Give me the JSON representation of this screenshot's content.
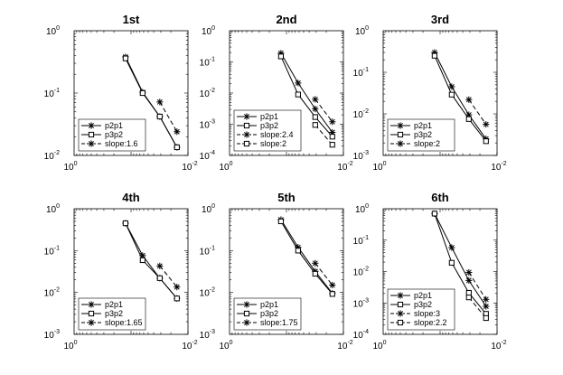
{
  "chart_data": [
    {
      "type": "line",
      "title": "1st",
      "xscale": "log",
      "yscale": "log",
      "xlim": [
        1,
        0.01
      ],
      "ylim": [
        0.01,
        1
      ],
      "xticks": [
        "10",
        "0",
        "10",
        "-2"
      ],
      "yticks": [
        [
          "10",
          "0"
        ],
        [
          "10",
          "-1"
        ],
        [
          "10",
          "-2"
        ]
      ],
      "legend_position": "bottom-left",
      "series": [
        {
          "name": "p2p1",
          "marker": "asterisk",
          "style": "solid",
          "x": [
            0.125,
            0.0625,
            0.03125,
            0.015625
          ],
          "y": [
            0.38,
            0.103,
            0.042,
            0.0135
          ]
        },
        {
          "name": "p3p2",
          "marker": "square",
          "style": "solid",
          "x": [
            0.125,
            0.0625,
            0.03125,
            0.015625
          ],
          "y": [
            0.36,
            0.1,
            0.042,
            0.0135
          ]
        },
        {
          "name": "slope:1.6",
          "marker": "asterisk",
          "style": "dashed",
          "x": [
            0.03125,
            0.015625
          ],
          "y": [
            0.072,
            0.024
          ]
        }
      ]
    },
    {
      "type": "line",
      "title": "2nd",
      "xscale": "log",
      "yscale": "log",
      "xlim": [
        1,
        0.01
      ],
      "ylim": [
        0.0001,
        1
      ],
      "xticks": [
        "10",
        "0",
        "10",
        "-2"
      ],
      "yticks": [
        [
          "10",
          "0"
        ],
        [
          "10",
          "-1"
        ],
        [
          "10",
          "-2"
        ],
        [
          "10",
          "-3"
        ],
        [
          "10",
          "-4"
        ]
      ],
      "legend_position": "bottom-left",
      "series": [
        {
          "name": "p2p1",
          "marker": "asterisk",
          "style": "solid",
          "x": [
            0.125,
            0.0625,
            0.03125,
            0.015625
          ],
          "y": [
            0.19,
            0.021,
            0.0031,
            0.00055
          ]
        },
        {
          "name": "p3p2",
          "marker": "square",
          "style": "solid",
          "x": [
            0.125,
            0.0625,
            0.03125,
            0.015625
          ],
          "y": [
            0.15,
            0.009,
            0.0017,
            0.0004
          ]
        },
        {
          "name": "slope:2.4",
          "marker": "asterisk",
          "style": "dashed",
          "x": [
            0.03125,
            0.015625
          ],
          "y": [
            0.0063,
            0.0012
          ]
        },
        {
          "name": "slope:2",
          "marker": "square",
          "style": "dashed",
          "x": [
            0.03125,
            0.015625
          ],
          "y": [
            0.00095,
            0.00022
          ]
        }
      ]
    },
    {
      "type": "line",
      "title": "3rd",
      "xscale": "log",
      "yscale": "log",
      "xlim": [
        1,
        0.01
      ],
      "ylim": [
        0.001,
        1
      ],
      "xticks": [
        "10",
        "0",
        "10",
        "-2"
      ],
      "yticks": [
        [
          "10",
          "0"
        ],
        [
          "10",
          "-1"
        ],
        [
          "10",
          "-2"
        ],
        [
          "10",
          "-3"
        ]
      ],
      "legend_position": "bottom-left",
      "series": [
        {
          "name": "p2p1",
          "marker": "asterisk",
          "style": "solid",
          "x": [
            0.125,
            0.0625,
            0.03125,
            0.015625
          ],
          "y": [
            0.3,
            0.045,
            0.0095,
            0.0025
          ]
        },
        {
          "name": "p3p2",
          "marker": "square",
          "style": "solid",
          "x": [
            0.125,
            0.0625,
            0.03125,
            0.015625
          ],
          "y": [
            0.25,
            0.029,
            0.0075,
            0.0022
          ]
        },
        {
          "name": "slope:2",
          "marker": "asterisk",
          "style": "dashed",
          "x": [
            0.03125,
            0.015625
          ],
          "y": [
            0.022,
            0.0056
          ]
        }
      ]
    },
    {
      "type": "line",
      "title": "4th",
      "xscale": "log",
      "yscale": "log",
      "xlim": [
        1,
        0.01
      ],
      "ylim": [
        0.001,
        1
      ],
      "xticks": [
        "10",
        "0",
        "10",
        "-2"
      ],
      "yticks": [
        [
          "10",
          "0"
        ],
        [
          "10",
          "-1"
        ],
        [
          "10",
          "-2"
        ],
        [
          "10",
          "-3"
        ]
      ],
      "legend_position": "bottom-left",
      "series": [
        {
          "name": "p2p1",
          "marker": "asterisk",
          "style": "solid",
          "x": [
            0.125,
            0.0625,
            0.03125,
            0.015625
          ],
          "y": [
            0.45,
            0.076,
            0.022,
            0.0072
          ]
        },
        {
          "name": "p3p2",
          "marker": "square",
          "style": "solid",
          "x": [
            0.125,
            0.0625,
            0.03125,
            0.015625
          ],
          "y": [
            0.45,
            0.059,
            0.022,
            0.0072
          ]
        },
        {
          "name": "slope:1.65",
          "marker": "asterisk",
          "style": "dashed",
          "x": [
            0.03125,
            0.015625
          ],
          "y": [
            0.043,
            0.0135
          ]
        }
      ]
    },
    {
      "type": "line",
      "title": "5th",
      "xscale": "log",
      "yscale": "log",
      "xlim": [
        1,
        0.01
      ],
      "ylim": [
        0.001,
        1
      ],
      "xticks": [
        "10",
        "0",
        "10",
        "-2"
      ],
      "yticks": [
        [
          "10",
          "0"
        ],
        [
          "10",
          "-1"
        ],
        [
          "10",
          "-2"
        ],
        [
          "10",
          "-3"
        ]
      ],
      "legend_position": "bottom-left",
      "series": [
        {
          "name": "p2p1",
          "marker": "asterisk",
          "style": "solid",
          "x": [
            0.125,
            0.0625,
            0.03125,
            0.015625
          ],
          "y": [
            0.55,
            0.12,
            0.032,
            0.0095
          ]
        },
        {
          "name": "p3p2",
          "marker": "square",
          "style": "solid",
          "x": [
            0.125,
            0.0625,
            0.03125,
            0.015625
          ],
          "y": [
            0.5,
            0.1,
            0.028,
            0.0092
          ]
        },
        {
          "name": "slope:1.75",
          "marker": "asterisk",
          "style": "dashed",
          "x": [
            0.03125,
            0.015625
          ],
          "y": [
            0.05,
            0.015
          ]
        }
      ]
    },
    {
      "type": "line",
      "title": "6th",
      "xscale": "log",
      "yscale": "log",
      "xlim": [
        1,
        0.01
      ],
      "ylim": [
        0.0001,
        1
      ],
      "xticks": [
        "10",
        "0",
        "10",
        "-2"
      ],
      "yticks": [
        [
          "10",
          "0"
        ],
        [
          "10",
          "-1"
        ],
        [
          "10",
          "-2"
        ],
        [
          "10",
          "-3"
        ],
        [
          "10",
          "-4"
        ]
      ],
      "legend_position": "bottom-left",
      "series": [
        {
          "name": "p2p1",
          "marker": "asterisk",
          "style": "solid",
          "x": [
            0.125,
            0.0625,
            0.03125,
            0.015625
          ],
          "y": [
            0.7,
            0.058,
            0.0052,
            0.00078
          ]
        },
        {
          "name": "p3p2",
          "marker": "square",
          "style": "solid",
          "x": [
            0.125,
            0.0625,
            0.03125,
            0.015625
          ],
          "y": [
            0.7,
            0.019,
            0.0021,
            0.00045
          ]
        },
        {
          "name": "slope:3",
          "marker": "asterisk",
          "style": "dashed",
          "x": [
            0.03125,
            0.015625
          ],
          "y": [
            0.0094,
            0.0013
          ]
        },
        {
          "name": "slope:2.2",
          "marker": "square",
          "style": "dashed",
          "x": [
            0.03125,
            0.015625
          ],
          "y": [
            0.0015,
            0.00033
          ]
        }
      ]
    }
  ]
}
